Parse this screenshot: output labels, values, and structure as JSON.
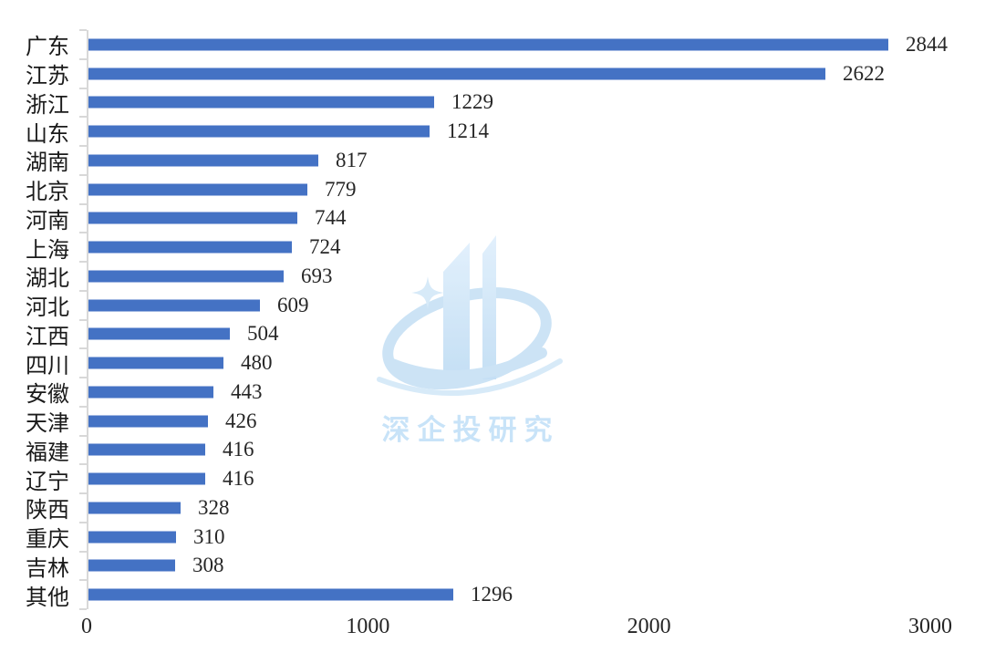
{
  "chart_data": {
    "type": "bar",
    "orientation": "horizontal",
    "title": "",
    "xlabel": "",
    "ylabel": "",
    "categories": [
      "广东",
      "江苏",
      "浙江",
      "山东",
      "湖南",
      "北京",
      "河南",
      "上海",
      "湖北",
      "河北",
      "江西",
      "四川",
      "安徽",
      "天津",
      "福建",
      "辽宁",
      "陕西",
      "重庆",
      "吉林",
      "其他"
    ],
    "values": [
      2844,
      2622,
      1229,
      1214,
      817,
      779,
      744,
      724,
      693,
      609,
      504,
      480,
      443,
      426,
      416,
      416,
      328,
      310,
      308,
      1296
    ],
    "xlim": [
      0,
      3000
    ],
    "x_ticks": [
      0,
      1000,
      2000,
      3000
    ],
    "grid": false,
    "legend": false,
    "data_labels": true,
    "bar_color": "#4472C4",
    "axis_color": "#D8D8D8",
    "text_color": "#262626"
  },
  "watermark": {
    "text": "深企投研究",
    "text_color": "#C3E1F8",
    "logo_color": "#C7E1F5"
  }
}
